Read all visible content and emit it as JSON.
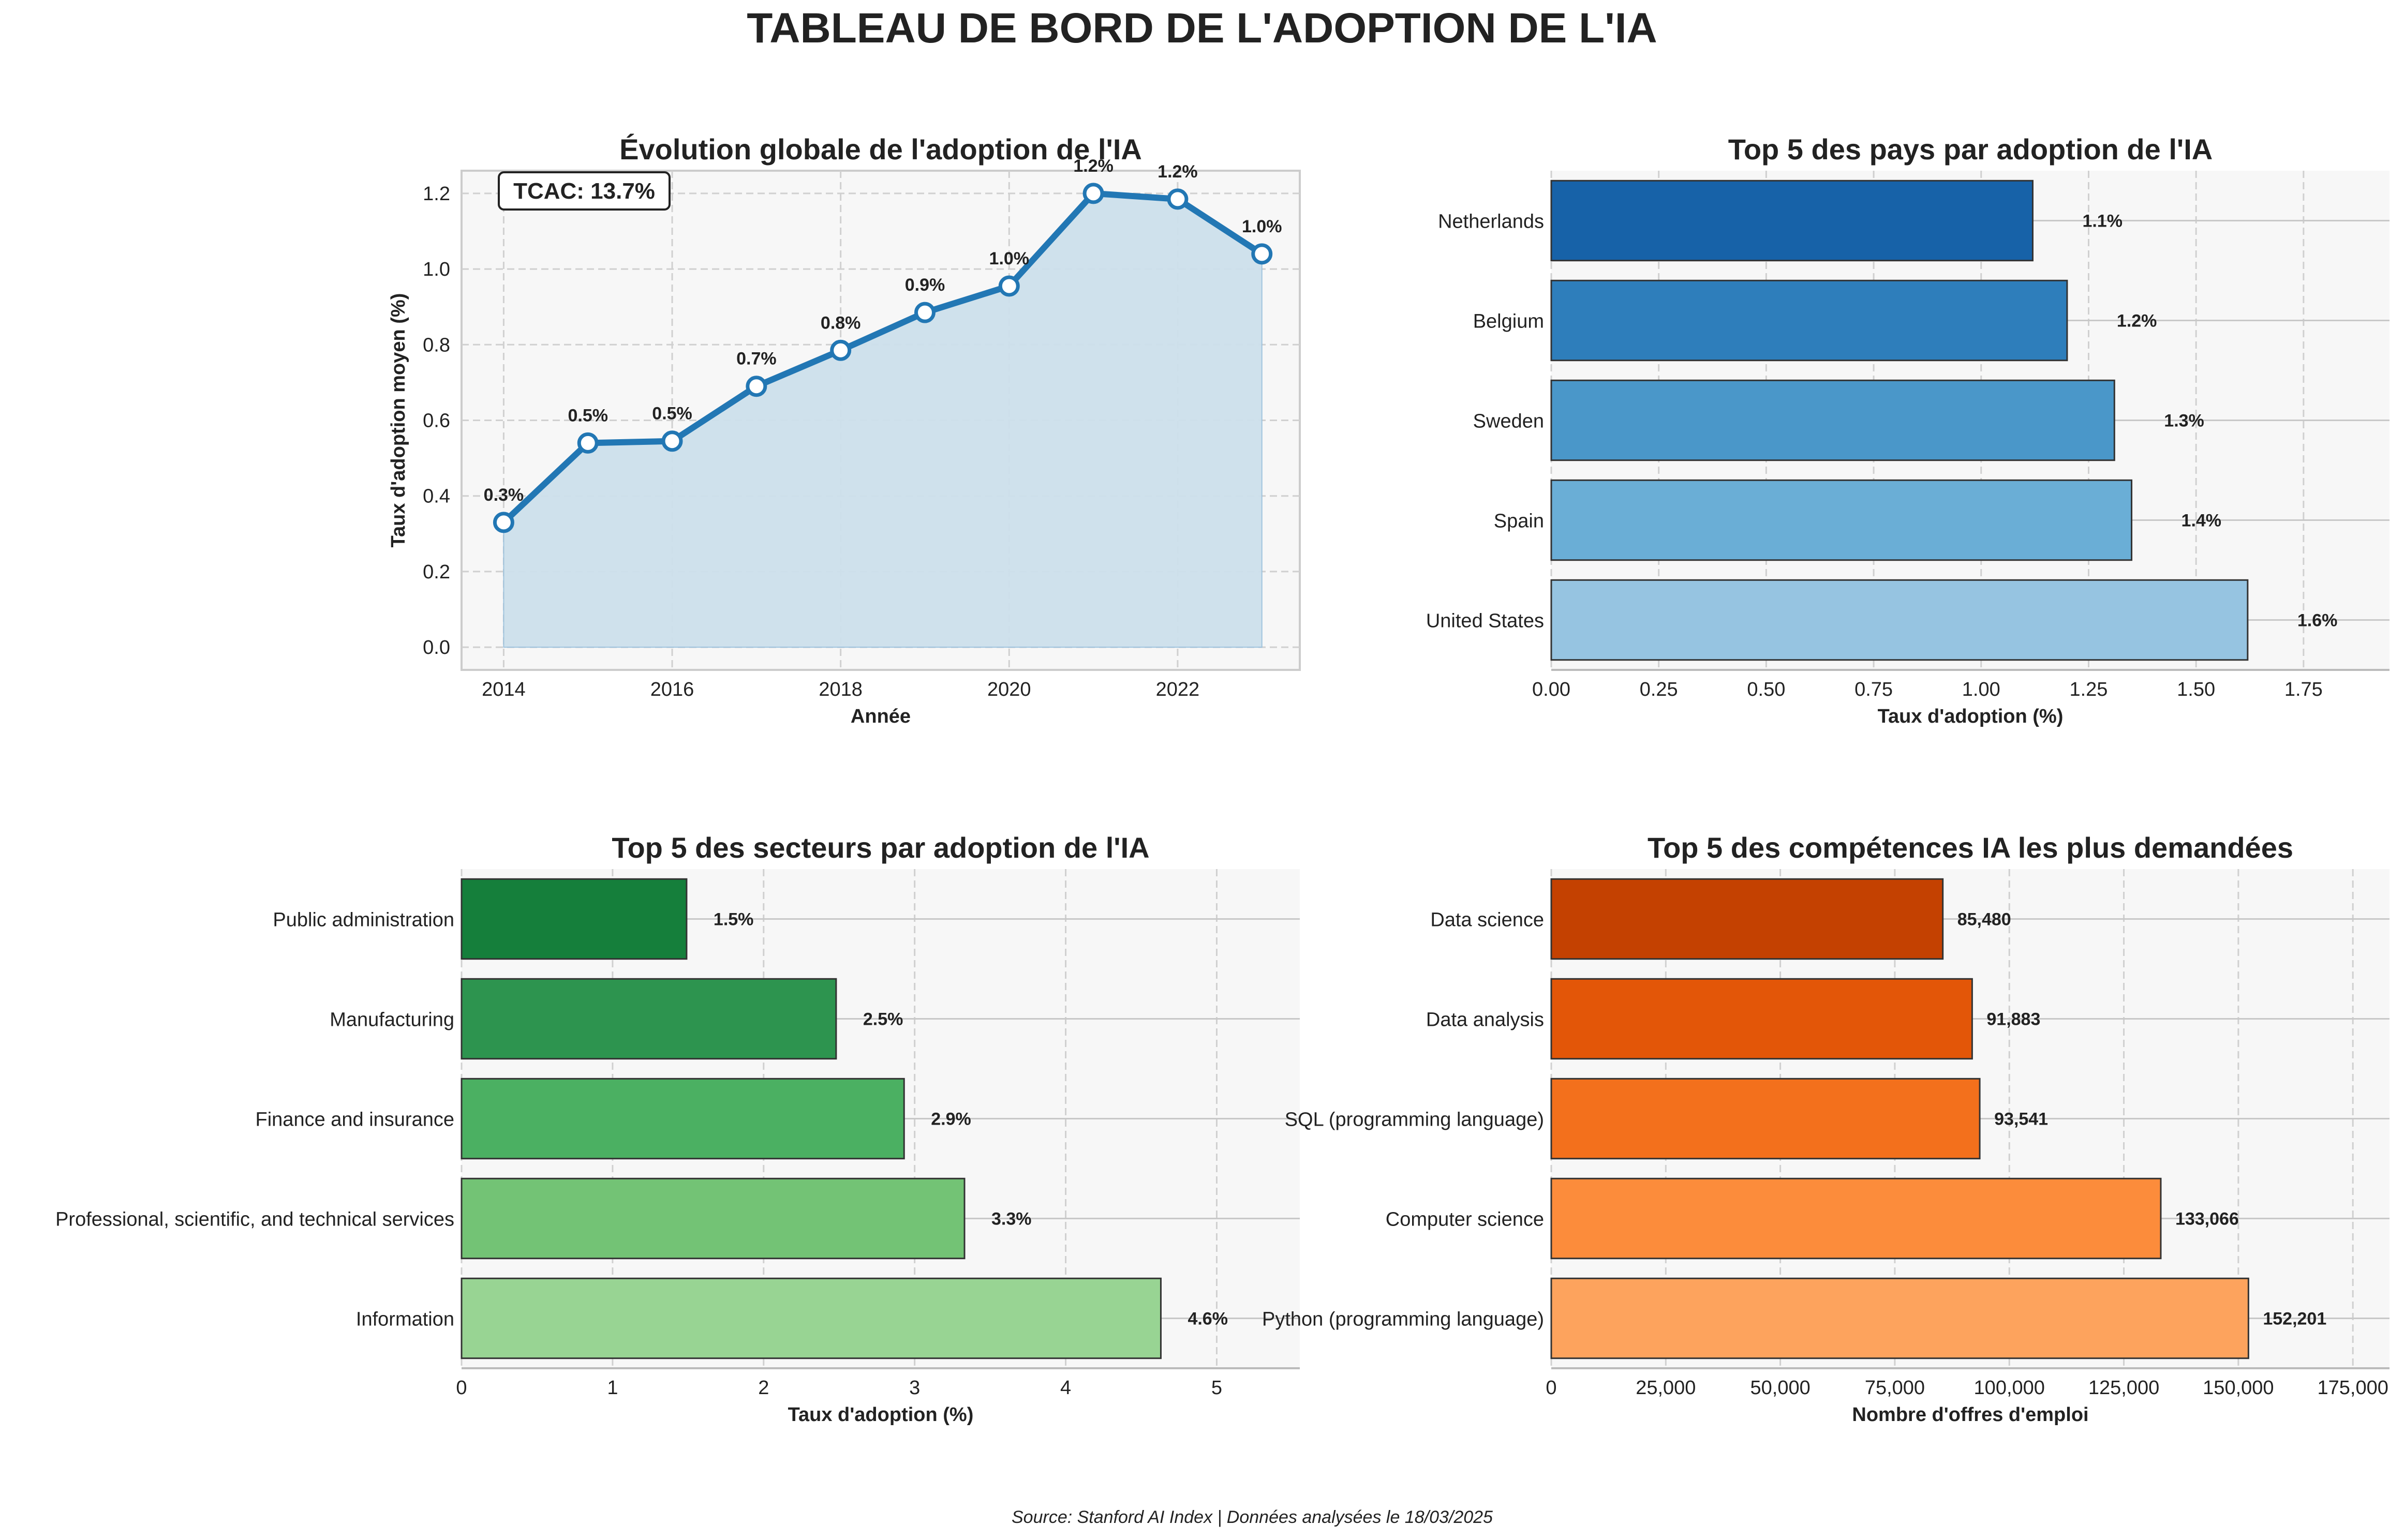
{
  "dashboard_title": "TABLEAU DE BORD DE L'ADOPTION DE L'IA",
  "footer": "Source: Stanford AI Index | Données analysées le 18/03/2025",
  "colors": {
    "line": "#2277b4",
    "area": "#cde0ec",
    "panel_bg": "#f7f7f7",
    "grid": "#d0d0d0",
    "countries": [
      "#1762a8",
      "#2e7ebb",
      "#4a97c9",
      "#6aaed6",
      "#96c4e1"
    ],
    "sectors": [
      "#157f3b",
      "#2d944f",
      "#4bb062",
      "#73c375",
      "#98d493"
    ],
    "skills": [
      "#c44101",
      "#e35608",
      "#f3701c",
      "#fc8c3b",
      "#fda35d"
    ]
  },
  "chart_data": [
    {
      "type": "line",
      "title": "Évolution globale de l'adoption de l'IA",
      "xlabel": "Année",
      "ylabel": "Taux d'adoption moyen (%)",
      "x": [
        2014,
        2015,
        2016,
        2017,
        2018,
        2019,
        2020,
        2021,
        2022,
        2023
      ],
      "values": [
        0.33,
        0.54,
        0.545,
        0.69,
        0.785,
        0.885,
        0.955,
        1.2,
        1.185,
        1.04
      ],
      "data_labels": [
        "0.3%",
        "0.5%",
        "0.5%",
        "0.7%",
        "0.8%",
        "0.9%",
        "1.0%",
        "1.2%",
        "1.2%",
        "1.0%"
      ],
      "xlim": [
        2013.5,
        2023.45
      ],
      "ylim": [
        -0.06,
        1.26
      ],
      "xticks": [
        2014,
        2016,
        2018,
        2020,
        2022
      ],
      "yticks": [
        0.0,
        0.2,
        0.4,
        0.6,
        0.8,
        1.0,
        1.2
      ],
      "ytick_labels": [
        "0.0",
        "0.2",
        "0.4",
        "0.6",
        "0.8",
        "1.0",
        "1.2"
      ],
      "annotation": "TCAC: 13.7%",
      "grid": true
    },
    {
      "type": "bar",
      "orientation": "horizontal",
      "title": "Top 5 des pays par adoption de l'IA",
      "xlabel": "Taux d'adoption (%)",
      "categories": [
        "Netherlands",
        "Belgium",
        "Sweden",
        "Spain",
        "United States"
      ],
      "values": [
        1.12,
        1.2,
        1.31,
        1.35,
        1.62
      ],
      "data_labels": [
        "1.1%",
        "1.2%",
        "1.3%",
        "1.4%",
        "1.6%"
      ],
      "xlim": [
        0,
        1.95
      ],
      "xticks": [
        0,
        0.25,
        0.5,
        0.75,
        1.0,
        1.25,
        1.5,
        1.75
      ],
      "xtick_labels": [
        "0.00",
        "0.25",
        "0.50",
        "0.75",
        "1.00",
        "1.25",
        "1.50",
        "1.75"
      ],
      "grid": true
    },
    {
      "type": "bar",
      "orientation": "horizontal",
      "title": "Top 5 des secteurs par adoption de l'IA",
      "xlabel": "Taux d'adoption (%)",
      "categories": [
        "Public administration",
        "Manufacturing",
        "Finance and insurance",
        "Professional, scientific, and technical services",
        "Information"
      ],
      "values": [
        1.49,
        2.48,
        2.93,
        3.33,
        4.63
      ],
      "data_labels": [
        "1.5%",
        "2.5%",
        "2.9%",
        "3.3%",
        "4.6%"
      ],
      "xlim": [
        0,
        5.55
      ],
      "xticks": [
        0,
        1,
        2,
        3,
        4,
        5
      ],
      "xtick_labels": [
        "0",
        "1",
        "2",
        "3",
        "4",
        "5"
      ],
      "grid": true
    },
    {
      "type": "bar",
      "orientation": "horizontal",
      "title": "Top 5 des compétences IA les plus demandées",
      "xlabel": "Nombre d'offres d'emploi",
      "categories": [
        "Data science",
        "Data analysis",
        "SQL (programming language)",
        "Computer science",
        "Python (programming language)"
      ],
      "values": [
        85480,
        91883,
        93541,
        133066,
        152201
      ],
      "data_labels": [
        "85,480",
        "91,883",
        "93,541",
        "133,066",
        "152,201"
      ],
      "xlim": [
        0,
        183000
      ],
      "xticks": [
        0,
        25000,
        50000,
        75000,
        100000,
        125000,
        150000,
        175000
      ],
      "xtick_labels": [
        "0",
        "25,000",
        "50,000",
        "75,000",
        "100,000",
        "125,000",
        "150,000",
        "175,000"
      ],
      "grid": true
    }
  ]
}
